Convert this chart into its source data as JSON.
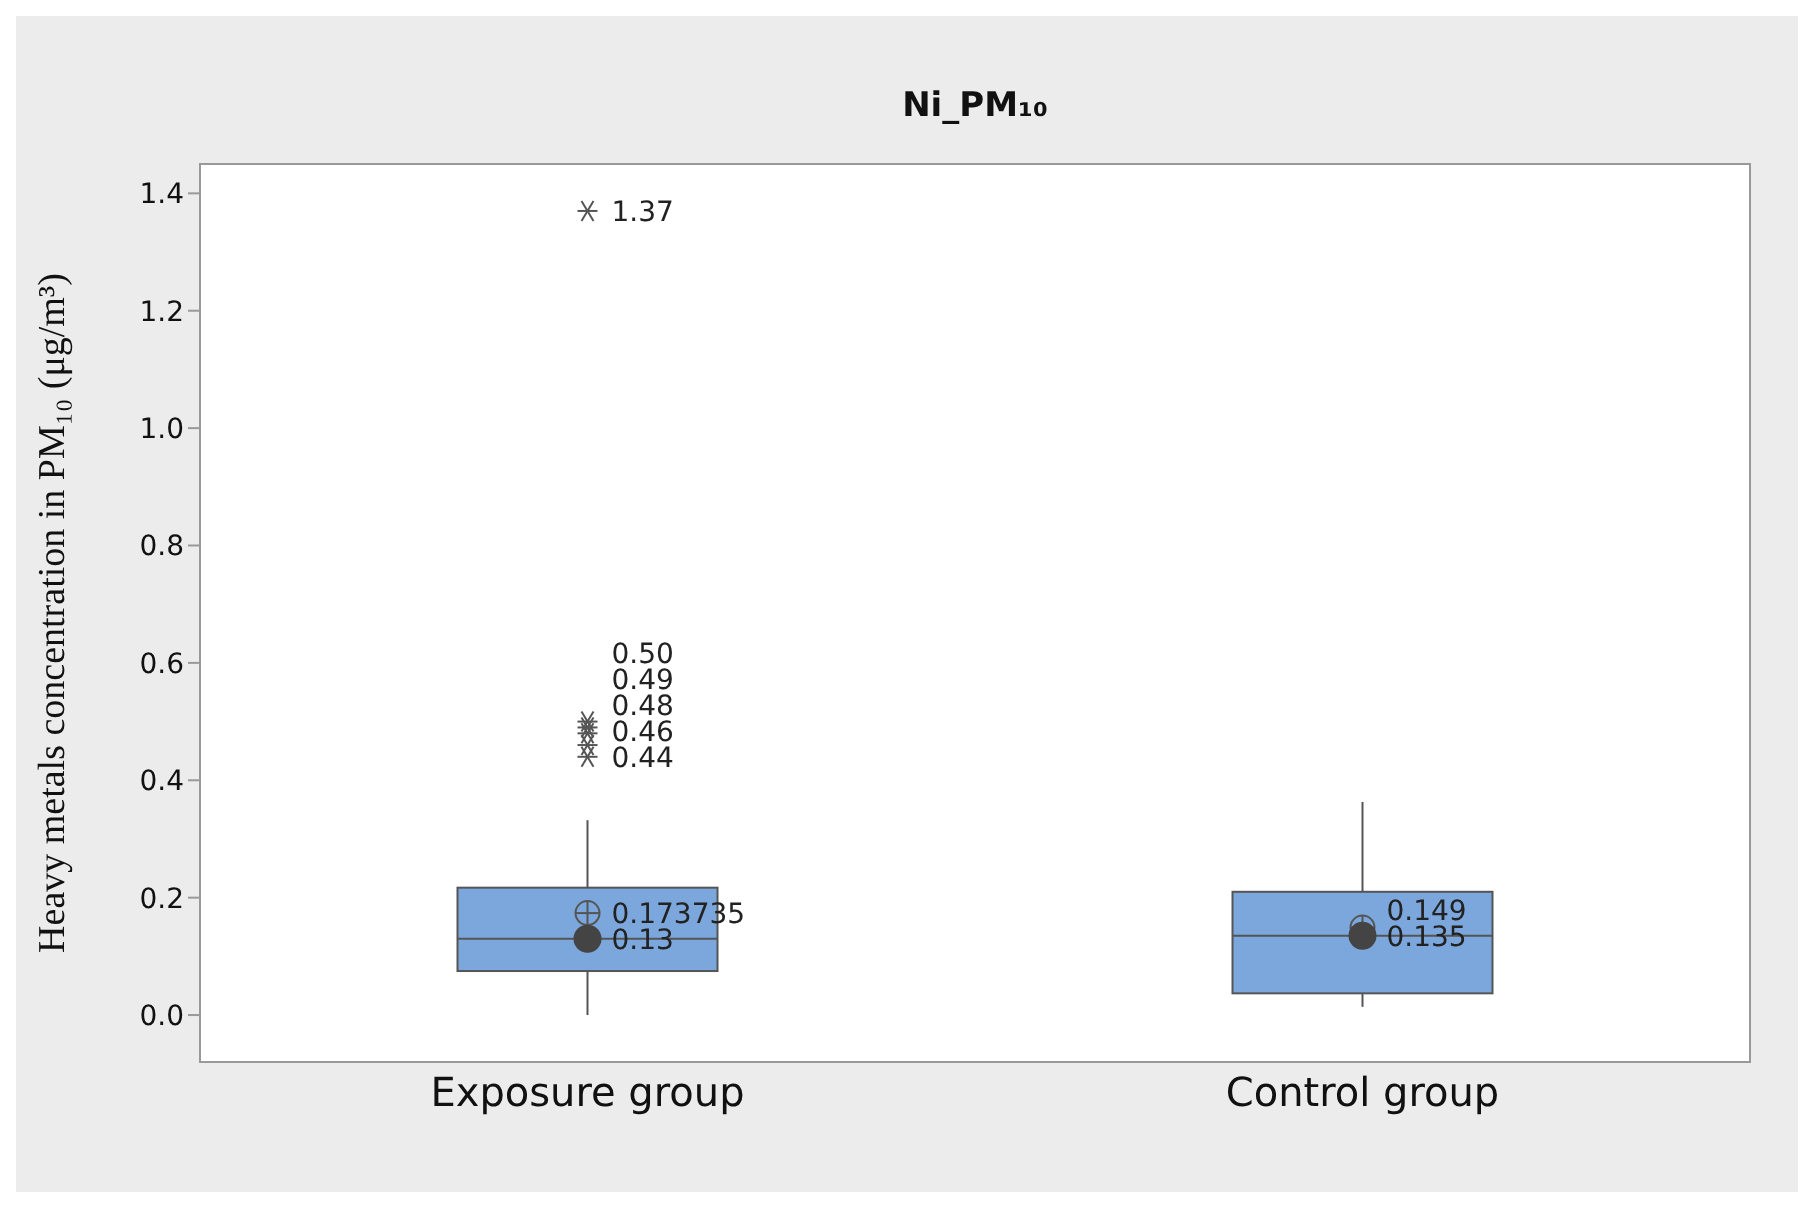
{
  "chart_data": {
    "type": "box",
    "title": "Ni_PM₁₀",
    "ylabel": "Heavy metals concentration in PM₁₀ (μg/m³)",
    "categories": [
      "Exposure group",
      "Control group"
    ],
    "series": [
      {
        "color": "#7ba7dc",
        "boxes": [
          {
            "low": 0,
            "q1": 0.075,
            "median": 0.13,
            "q3": 0.217,
            "high": 0.332,
            "mean": 0.173735,
            "outliers": [
              0.44,
              0.46,
              0.48,
              0.49,
              0.5,
              1.37
            ]
          },
          {
            "low": 0.014,
            "q1": 0.037,
            "median": 0.135,
            "q3": 0.21,
            "high": 0.363,
            "mean": 0.149
          }
        ]
      },
      {
        "type": "scatter",
        "x": [
          "Exposure group",
          "Control group"
        ],
        "values": [
          0.13,
          0.135
        ],
        "color": "#444444",
        "marker": "circle"
      }
    ],
    "ylim": [
      -0.08,
      1.45
    ],
    "yticks": [
      {
        "value": 0,
        "label": "0.0"
      },
      0.2,
      0.4,
      0.6,
      0.8,
      {
        "value": 1,
        "label": "1.0"
      },
      1.2,
      1.4
    ],
    "marker": "star",
    "annotations": [
      "1.37",
      "0.50",
      "0.49",
      "0.48",
      "0.46",
      "0.44",
      "0.173735",
      "0.13",
      "0.149",
      "0.135"
    ]
  }
}
